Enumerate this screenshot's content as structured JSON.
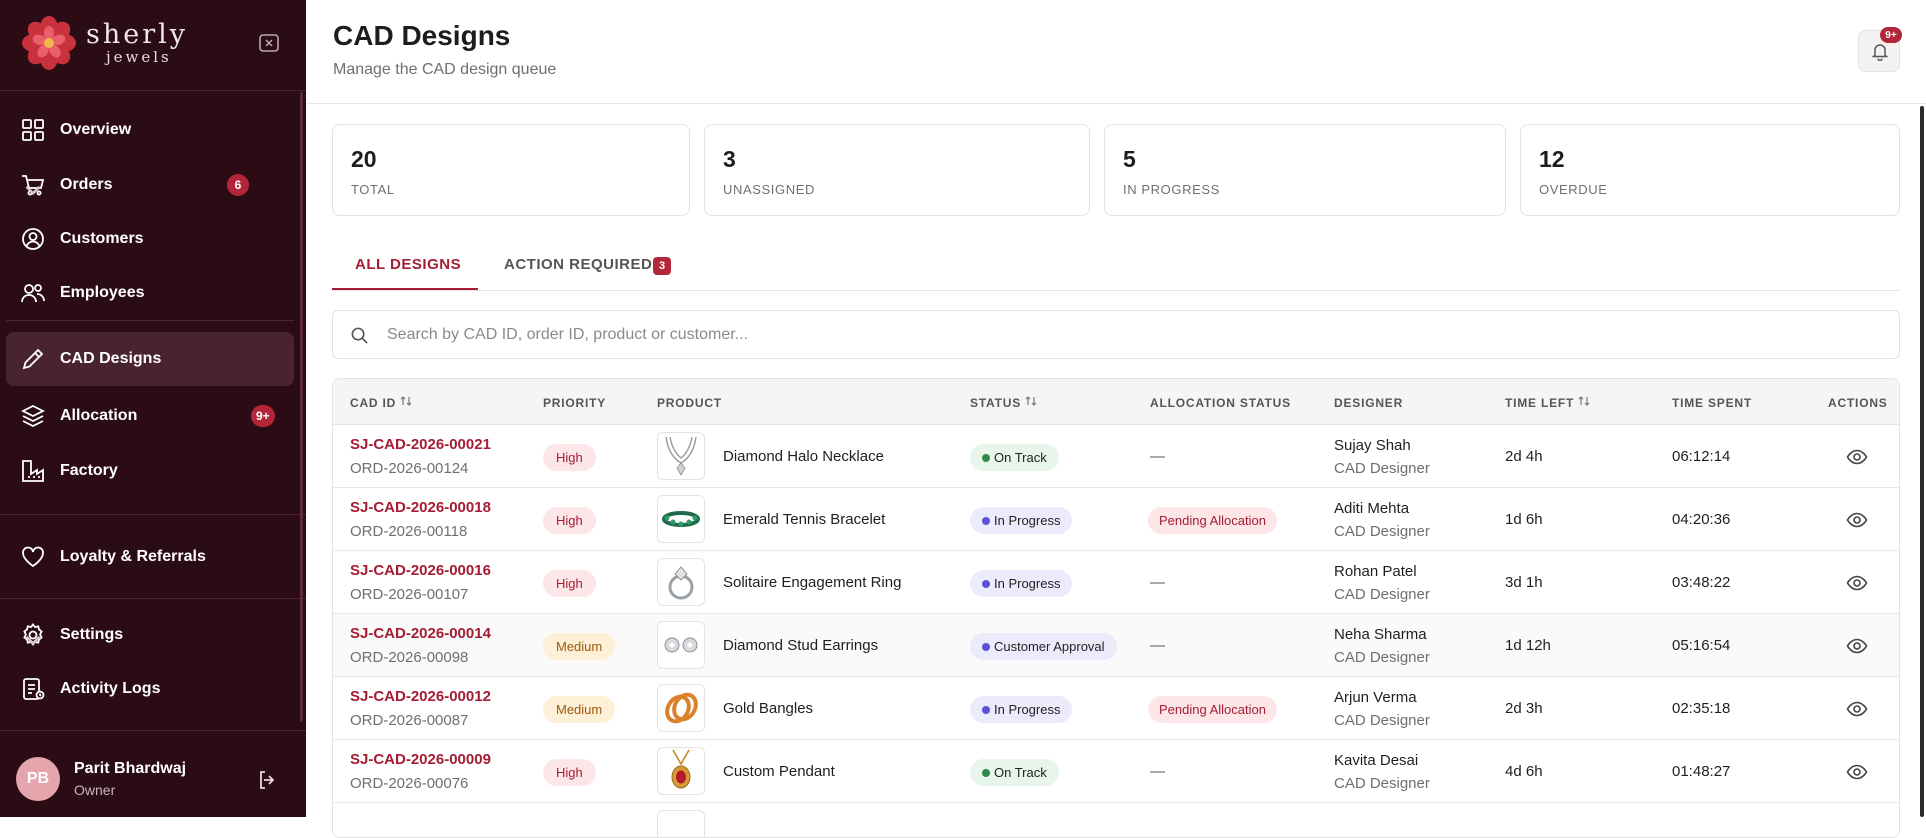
{
  "brand": {
    "name": "sherly",
    "sub": "jewels"
  },
  "sidebar": {
    "items": [
      {
        "label": "Overview",
        "icon": "grid-icon"
      },
      {
        "label": "Orders",
        "icon": "cart-icon",
        "badge": "6"
      },
      {
        "label": "Customers",
        "icon": "user-circle-icon"
      },
      {
        "label": "Employees",
        "icon": "users-icon"
      },
      {
        "label": "CAD Designs",
        "icon": "pencil-icon",
        "active": true
      },
      {
        "label": "Allocation",
        "icon": "layers-icon",
        "badge": "9+"
      },
      {
        "label": "Factory",
        "icon": "factory-icon"
      },
      {
        "label": "Loyalty & Referrals",
        "icon": "heart-icon"
      },
      {
        "label": "Settings",
        "icon": "gear-icon"
      },
      {
        "label": "Activity Logs",
        "icon": "log-icon"
      }
    ],
    "user": {
      "initials": "PB",
      "name": "Parit Bhardwaj",
      "role": "Owner"
    }
  },
  "header": {
    "title": "CAD Designs",
    "subtitle": "Manage the CAD design queue",
    "notifications": "9+"
  },
  "stats": [
    {
      "value": "20",
      "label": "TOTAL"
    },
    {
      "value": "3",
      "label": "UNASSIGNED"
    },
    {
      "value": "5",
      "label": "IN PROGRESS"
    },
    {
      "value": "12",
      "label": "OVERDUE"
    }
  ],
  "tabs": {
    "all": "ALL DESIGNS",
    "action": "ACTION REQUIRED",
    "action_count": "3"
  },
  "search": {
    "placeholder": "Search by CAD ID, order ID, product or customer...",
    "value": ""
  },
  "table": {
    "columns": [
      "CAD ID",
      "PRIORITY",
      "PRODUCT",
      "STATUS",
      "ALLOCATION STATUS",
      "DESIGNER",
      "TIME LEFT",
      "TIME SPENT",
      "ACTIONS"
    ],
    "rows": [
      {
        "cad_id": "SJ-CAD-2026-00021",
        "order_id": "ORD-2026-00124",
        "priority": "High",
        "product": "Diamond Halo Necklace",
        "status": "On Track",
        "allocation": "—",
        "designer": "Sujay Shah",
        "role": "CAD Designer",
        "time_left": "2d 4h",
        "time_spent": "06:12:14"
      },
      {
        "cad_id": "SJ-CAD-2026-00018",
        "order_id": "ORD-2026-00118",
        "priority": "High",
        "product": "Emerald Tennis Bracelet",
        "status": "In Progress",
        "allocation": "Pending Allocation",
        "designer": "Aditi Mehta",
        "role": "CAD Designer",
        "time_left": "1d 6h",
        "time_spent": "04:20:36"
      },
      {
        "cad_id": "SJ-CAD-2026-00016",
        "order_id": "ORD-2026-00107",
        "priority": "High",
        "product": "Solitaire Engagement Ring",
        "status": "In Progress",
        "allocation": "—",
        "designer": "Rohan Patel",
        "role": "CAD Designer",
        "time_left": "3d 1h",
        "time_spent": "03:48:22"
      },
      {
        "cad_id": "SJ-CAD-2026-00014",
        "order_id": "ORD-2026-00098",
        "priority": "Medium",
        "product": "Diamond Stud Earrings",
        "status": "Customer Approval",
        "allocation": "—",
        "designer": "Neha Sharma",
        "role": "CAD Designer",
        "time_left": "1d 12h",
        "time_spent": "05:16:54"
      },
      {
        "cad_id": "SJ-CAD-2026-00012",
        "order_id": "ORD-2026-00087",
        "priority": "Medium",
        "product": "Gold Bangles",
        "status": "In Progress",
        "allocation": "Pending Allocation",
        "designer": "Arjun Verma",
        "role": "CAD Designer",
        "time_left": "2d 3h",
        "time_spent": "02:35:18"
      },
      {
        "cad_id": "SJ-CAD-2026-00009",
        "order_id": "ORD-2026-00076",
        "priority": "High",
        "product": "Custom Pendant",
        "status": "On Track",
        "allocation": "—",
        "designer": "Kavita Desai",
        "role": "CAD Designer",
        "time_left": "4d 6h",
        "time_spent": "01:48:27"
      }
    ]
  },
  "colors": {
    "sidebar": "#2b0b14",
    "accent": "#a51d33",
    "badge": "#b3263a"
  }
}
